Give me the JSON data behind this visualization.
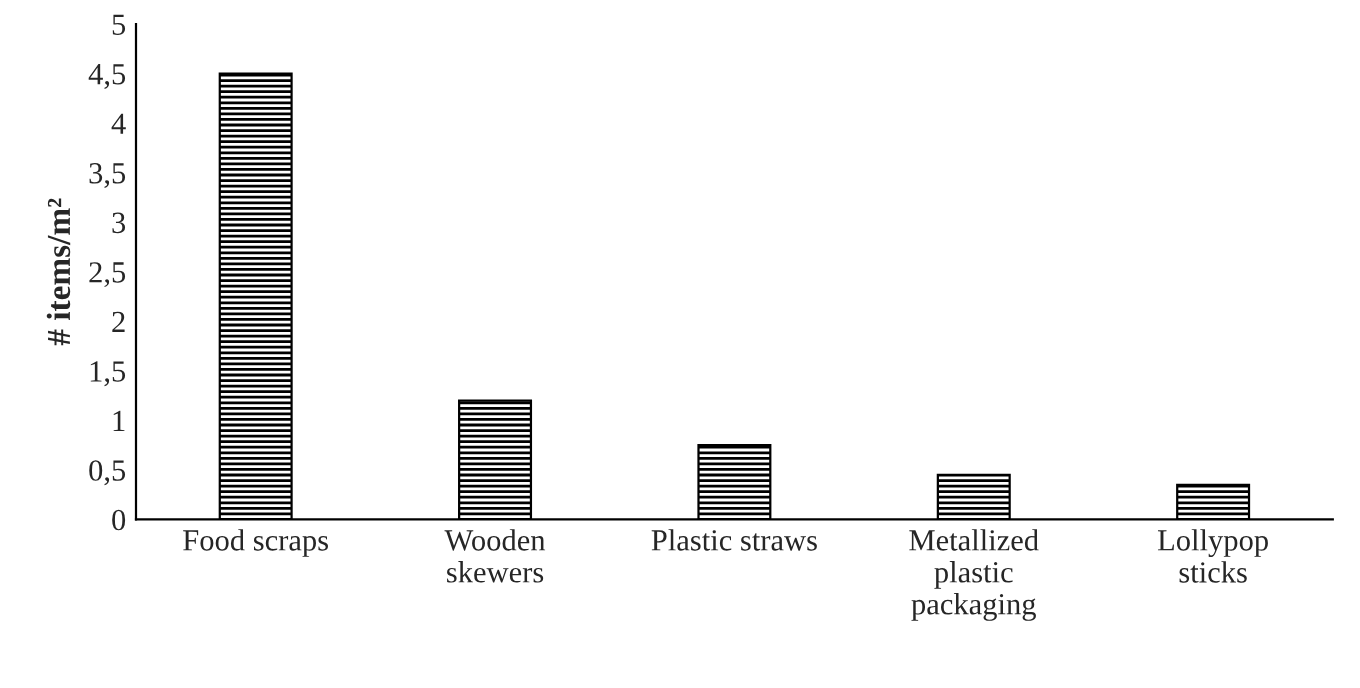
{
  "chart_data": {
    "type": "bar",
    "ylabel": "# items/m²",
    "categories": [
      "Food scraps",
      "Wooden\nskewers",
      "Plastic straws",
      "Metallized\nplastic\npackaging",
      "Lollypop\nsticks"
    ],
    "values": [
      4.5,
      1.2,
      0.75,
      0.45,
      0.35
    ],
    "color": "#000000",
    "ylim": [
      0,
      5
    ],
    "yticks": [
      0,
      {
        "value": 0.5,
        "label": "0,5"
      },
      1,
      {
        "value": 1.5,
        "label": "1,5"
      },
      2,
      {
        "value": 2.5,
        "label": "2,5"
      },
      3,
      {
        "value": 3.5,
        "label": "3,5"
      },
      4,
      {
        "value": 4.5,
        "label": "4,5"
      },
      5
    ],
    "grid": false,
    "legend": false
  }
}
